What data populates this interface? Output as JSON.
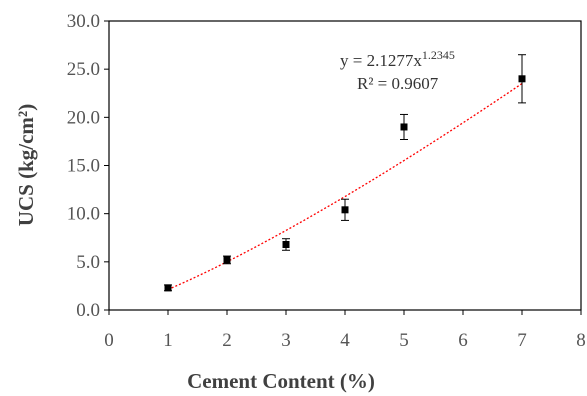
{
  "chart_data": {
    "type": "scatter",
    "x": [
      1,
      2,
      3,
      4,
      5,
      7
    ],
    "y": [
      2.3,
      5.2,
      6.8,
      10.4,
      19.0,
      24.0
    ],
    "error": [
      0.3,
      0.4,
      0.6,
      1.1,
      1.3,
      2.5
    ],
    "xlabel": "Cement Content (%)",
    "ylabel": "UCS (kg/cm²)",
    "xlim": [
      0,
      8
    ],
    "ylim": [
      0,
      30
    ],
    "x_ticks": [
      "0",
      "1",
      "2",
      "3",
      "4",
      "5",
      "6",
      "7",
      "8"
    ],
    "y_ticks": [
      "0.0",
      "5.0",
      "10.0",
      "15.0",
      "20.0",
      "25.0",
      "30.0"
    ],
    "grid": false,
    "trendline": {
      "type": "power",
      "coefficient": 2.1277,
      "exponent": 1.2345,
      "equation_prefix": "y = 2.1277x",
      "equation_exponent": "1.2345",
      "r_squared": "R² = 0.9607",
      "color": "#ff0000"
    },
    "marker_color": "#000000",
    "axis_color": "#000000"
  }
}
